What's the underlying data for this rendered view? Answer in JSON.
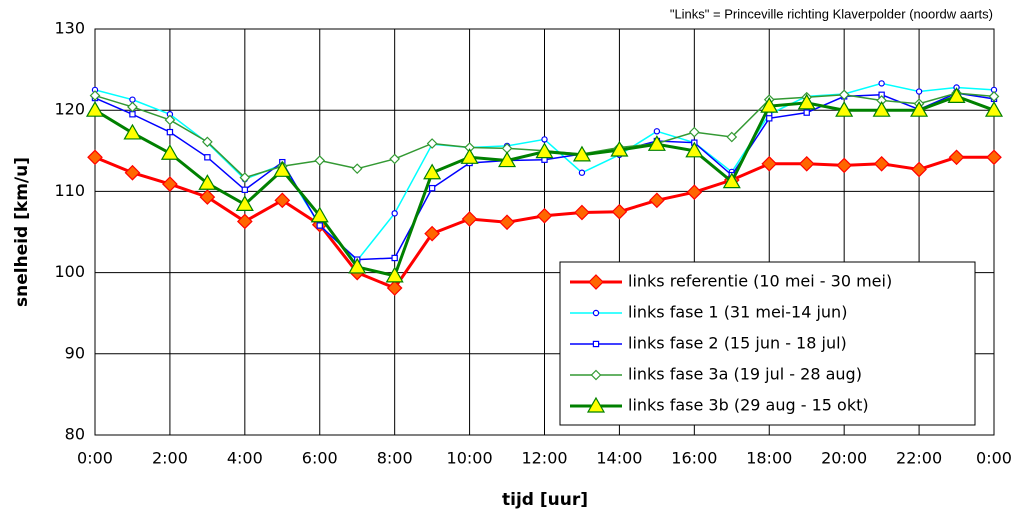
{
  "chart_data": {
    "type": "line",
    "annotation": "\"Links\" = Princeville richting Klaverpolder (noordw aarts)",
    "y_label": "snelheid [km/u]",
    "x_label": "tijd [uur]",
    "categories": [
      "0:00",
      null,
      "2:00",
      null,
      "4:00",
      null,
      "6:00",
      null,
      "8:00",
      null,
      "10:00",
      null,
      "12:00",
      null,
      "14:00",
      null,
      "16:00",
      null,
      "18:00",
      null,
      "20:00",
      null,
      "22:00",
      null,
      "0:00"
    ],
    "ylim": [
      80,
      130
    ],
    "yticks": [
      80,
      90,
      100,
      110,
      120,
      130
    ],
    "grid": true,
    "legend": "lower right",
    "series": [
      {
        "name": "links referentie (10 mei - 30 mei)",
        "color": "#ff0000",
        "marker": "diamond",
        "marker_color": "#ff6600",
        "line_width": 3,
        "values": [
          114.2,
          112.3,
          110.9,
          109.3,
          106.3,
          108.9,
          105.9,
          100.0,
          98.1,
          104.8,
          106.6,
          106.2,
          107.0,
          107.4,
          107.5,
          108.9,
          109.9,
          111.4,
          113.4,
          113.4,
          113.2,
          113.4,
          112.7,
          114.2,
          114.2
        ]
      },
      {
        "name": "links fase 1 (31 mei-14 jun)",
        "color": "#00ffff",
        "marker": "circle",
        "marker_color": "#0000ff",
        "line_width": 1.5,
        "values": [
          122.5,
          121.3,
          119.5,
          116.0,
          111.5,
          113.3,
          105.8,
          101.5,
          107.3,
          115.8,
          115.4,
          115.6,
          116.4,
          112.3,
          114.5,
          117.4,
          116.0,
          112.4,
          119.5,
          121.7,
          122.0,
          123.3,
          122.3,
          122.8,
          122.5
        ]
      },
      {
        "name": "links fase 2 (15 jun - 18 jul)",
        "color": "#0000ff",
        "marker": "square",
        "marker_color": "#0000ff",
        "line_width": 1.5,
        "values": [
          121.5,
          119.5,
          117.3,
          114.2,
          110.2,
          113.6,
          105.8,
          101.6,
          101.8,
          110.4,
          113.5,
          113.8,
          113.9,
          114.6,
          115.0,
          116.2,
          116.0,
          112.0,
          119.0,
          119.7,
          121.7,
          121.9,
          120.1,
          122.1,
          121.4
        ]
      },
      {
        "name": "links fase 3a (19 jul - 28 aug)",
        "color": "#339933",
        "marker": "diamond",
        "marker_color": "#339933",
        "line_width": 1.5,
        "values": [
          121.8,
          120.4,
          118.8,
          116.1,
          111.7,
          113.1,
          113.8,
          112.8,
          114.0,
          115.9,
          115.4,
          115.3,
          115.0,
          114.6,
          115.4,
          115.9,
          117.3,
          116.7,
          121.3,
          121.6,
          121.9,
          121.2,
          120.8,
          122.1,
          121.7
        ]
      },
      {
        "name": "links fase 3b (29 aug - 15 okt)",
        "color": "#008000",
        "marker": "triangle",
        "marker_color": "#ffff00",
        "line_width": 3,
        "values": [
          120.0,
          117.2,
          114.7,
          111.0,
          108.4,
          112.6,
          107.0,
          100.7,
          99.6,
          112.3,
          114.2,
          113.8,
          114.9,
          114.5,
          115.1,
          115.8,
          115.0,
          111.2,
          120.5,
          120.9,
          120.0,
          120.0,
          120.0,
          121.7,
          120.0
        ]
      }
    ]
  }
}
